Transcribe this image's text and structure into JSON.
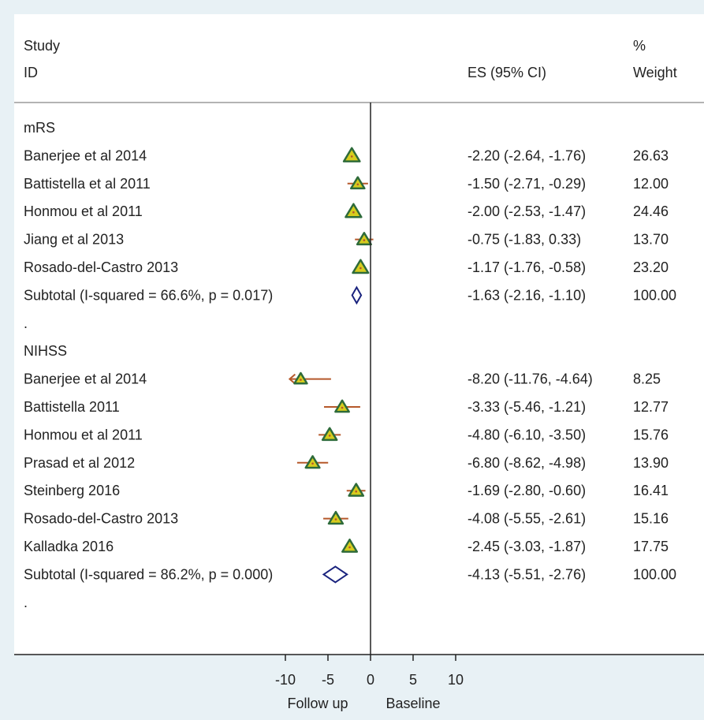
{
  "header": {
    "study_line1": "Study",
    "study_line2": "ID",
    "es_label": "ES (95% CI)",
    "weight_line1": "%",
    "weight_line2": "Weight"
  },
  "footer": {
    "left_label": "Follow up",
    "right_label": "Baseline"
  },
  "colors": {
    "background": "#e8f1f5",
    "panel": "#ffffff",
    "marker_fill": "#d6cc1e",
    "marker_edge": "#2e6b3a",
    "ci_line": "#b5582a",
    "diamond": "#1a237e"
  },
  "chart_data": {
    "type": "forest",
    "xlim": [
      -12,
      12
    ],
    "xticks": [
      -10,
      -5,
      0,
      5,
      10
    ],
    "xtick_labels": [
      "-10",
      "-5",
      "0",
      "5",
      "10"
    ],
    "rows": [
      {
        "kind": "group",
        "label": "mRS"
      },
      {
        "kind": "study",
        "label": "Banerjee et al 2014",
        "es": -2.2,
        "lo": -2.64,
        "hi": -1.76,
        "es_text": "-2.20 (-2.64, -1.76)",
        "weight": "26.63"
      },
      {
        "kind": "study",
        "label": "Battistella et al 2011",
        "es": -1.5,
        "lo": -2.71,
        "hi": -0.29,
        "es_text": "-1.50 (-2.71, -0.29)",
        "weight": "12.00"
      },
      {
        "kind": "study",
        "label": "Honmou et al 2011",
        "es": -2.0,
        "lo": -2.53,
        "hi": -1.47,
        "es_text": "-2.00 (-2.53, -1.47)",
        "weight": "24.46"
      },
      {
        "kind": "study",
        "label": "Jiang et al 2013",
        "es": -0.75,
        "lo": -1.83,
        "hi": 0.33,
        "es_text": "-0.75 (-1.83, 0.33)",
        "weight": "13.70"
      },
      {
        "kind": "study",
        "label": "Rosado-del-Castro 2013",
        "es": -1.17,
        "lo": -1.76,
        "hi": -0.58,
        "es_text": "-1.17 (-1.76, -0.58)",
        "weight": "23.20"
      },
      {
        "kind": "subtotal",
        "label": "Subtotal  (I-squared = 66.6%, p = 0.017)",
        "es": -1.63,
        "lo": -2.16,
        "hi": -1.1,
        "es_text": "-1.63 (-2.16, -1.10)",
        "weight": "100.00"
      },
      {
        "kind": "blank",
        "label": "."
      },
      {
        "kind": "group",
        "label": "NIHSS"
      },
      {
        "kind": "study",
        "label": "Banerjee et al 2014",
        "es": -8.2,
        "lo": -11.76,
        "hi": -4.64,
        "es_text": "-8.20 (-11.76, -4.64)",
        "weight": "8.25",
        "clipped_low": true
      },
      {
        "kind": "study",
        "label": "Battistella 2011",
        "es": -3.33,
        "lo": -5.46,
        "hi": -1.21,
        "es_text": "-3.33 (-5.46, -1.21)",
        "weight": "12.77"
      },
      {
        "kind": "study",
        "label": "Honmou et al 2011",
        "es": -4.8,
        "lo": -6.1,
        "hi": -3.5,
        "es_text": "-4.80 (-6.10, -3.50)",
        "weight": "15.76"
      },
      {
        "kind": "study",
        "label": "Prasad et al 2012",
        "es": -6.8,
        "lo": -8.62,
        "hi": -4.98,
        "es_text": "-6.80 (-8.62, -4.98)",
        "weight": "13.90"
      },
      {
        "kind": "study",
        "label": "Steinberg 2016",
        "es": -1.69,
        "lo": -2.8,
        "hi": -0.6,
        "es_text": "-1.69 (-2.80, -0.60)",
        "weight": "16.41"
      },
      {
        "kind": "study",
        "label": "Rosado-del-Castro 2013",
        "es": -4.08,
        "lo": -5.55,
        "hi": -2.61,
        "es_text": "-4.08 (-5.55, -2.61)",
        "weight": "15.16"
      },
      {
        "kind": "study",
        "label": "Kalladka 2016",
        "es": -2.45,
        "lo": -3.03,
        "hi": -1.87,
        "es_text": "-2.45 (-3.03, -1.87)",
        "weight": "17.75"
      },
      {
        "kind": "subtotal",
        "label": "Subtotal  (I-squared = 86.2%, p = 0.000)",
        "es": -4.13,
        "lo": -5.51,
        "hi": -2.76,
        "es_text": "-4.13 (-5.51, -2.76)",
        "weight": "100.00"
      },
      {
        "kind": "blank",
        "label": "."
      }
    ]
  }
}
